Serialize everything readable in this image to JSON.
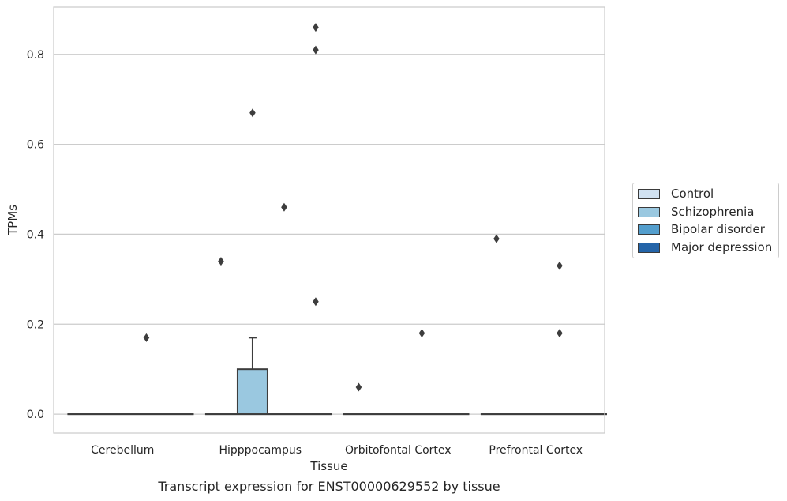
{
  "caption": "Transcript expression for ENST00000629552 by tissue",
  "chart_data": {
    "type": "box",
    "xlabel": "Tissue",
    "ylabel": "TPMs",
    "ylim": [
      -0.042,
      0.905
    ],
    "yticks": [
      0.0,
      0.2,
      0.4,
      0.6,
      0.8
    ],
    "ytick_labels": [
      "0.0",
      "0.2",
      "0.4",
      "0.6",
      "0.8"
    ],
    "grid": "horizontal",
    "legend_position": "center-right outside",
    "categories": [
      "Cerebellum",
      "Hipppocampus",
      "Orbitofontal Cortex",
      "Prefrontal Cortex"
    ],
    "series": [
      {
        "name": "Control",
        "color": "#d1e2f2"
      },
      {
        "name": "Schizophrenia",
        "color": "#9ac8e0"
      },
      {
        "name": "Bipolar disorder",
        "color": "#539ecd"
      },
      {
        "name": "Major depression",
        "color": "#2464a8"
      }
    ],
    "boxes": [
      {
        "category": "Cerebellum",
        "series": "Control",
        "min": 0,
        "q1": 0,
        "median": 0,
        "q3": 0,
        "max": 0,
        "outliers": []
      },
      {
        "category": "Cerebellum",
        "series": "Schizophrenia",
        "min": 0,
        "q1": 0,
        "median": 0,
        "q3": 0,
        "max": 0,
        "outliers": []
      },
      {
        "category": "Cerebellum",
        "series": "Bipolar disorder",
        "min": 0,
        "q1": 0,
        "median": 0,
        "q3": 0,
        "max": 0,
        "outliers": [
          0.17
        ]
      },
      {
        "category": "Cerebellum",
        "series": "Major depression",
        "min": 0,
        "q1": 0,
        "median": 0,
        "q3": 0,
        "max": 0,
        "outliers": []
      },
      {
        "category": "Hipppocampus",
        "series": "Control",
        "min": 0,
        "q1": 0,
        "median": 0,
        "q3": 0,
        "max": 0,
        "outliers": [
          0.34
        ]
      },
      {
        "category": "Hipppocampus",
        "series": "Schizophrenia",
        "min": 0,
        "q1": 0,
        "median": 0,
        "q3": 0.1,
        "max": 0.17,
        "outliers": [
          0.67
        ]
      },
      {
        "category": "Hipppocampus",
        "series": "Bipolar disorder",
        "min": 0,
        "q1": 0,
        "median": 0,
        "q3": 0,
        "max": 0,
        "outliers": [
          0.46
        ]
      },
      {
        "category": "Hipppocampus",
        "series": "Major depression",
        "min": 0,
        "q1": 0,
        "median": 0,
        "q3": 0,
        "max": 0,
        "outliers": [
          0.86,
          0.81,
          0.25
        ]
      },
      {
        "category": "Orbitofontal Cortex",
        "series": "Control",
        "min": 0,
        "q1": 0,
        "median": 0,
        "q3": 0,
        "max": 0,
        "outliers": [
          0.06
        ]
      },
      {
        "category": "Orbitofontal Cortex",
        "series": "Schizophrenia",
        "min": 0,
        "q1": 0,
        "median": 0,
        "q3": 0,
        "max": 0,
        "outliers": []
      },
      {
        "category": "Orbitofontal Cortex",
        "series": "Bipolar disorder",
        "min": 0,
        "q1": 0,
        "median": 0,
        "q3": 0,
        "max": 0,
        "outliers": [
          0.18
        ]
      },
      {
        "category": "Orbitofontal Cortex",
        "series": "Major depression",
        "min": 0,
        "q1": 0,
        "median": 0,
        "q3": 0,
        "max": 0,
        "outliers": []
      },
      {
        "category": "Prefrontal Cortex",
        "series": "Control",
        "min": 0,
        "q1": 0,
        "median": 0,
        "q3": 0,
        "max": 0,
        "outliers": [
          0.39
        ]
      },
      {
        "category": "Prefrontal Cortex",
        "series": "Schizophrenia",
        "min": 0,
        "q1": 0,
        "median": 0,
        "q3": 0,
        "max": 0,
        "outliers": []
      },
      {
        "category": "Prefrontal Cortex",
        "series": "Bipolar disorder",
        "min": 0,
        "q1": 0,
        "median": 0,
        "q3": 0,
        "max": 0,
        "outliers": [
          0.18,
          0.33
        ]
      },
      {
        "category": "Prefrontal Cortex",
        "series": "Major depression",
        "min": 0,
        "q1": 0,
        "median": 0,
        "q3": 0,
        "max": 0,
        "outliers": []
      }
    ]
  }
}
